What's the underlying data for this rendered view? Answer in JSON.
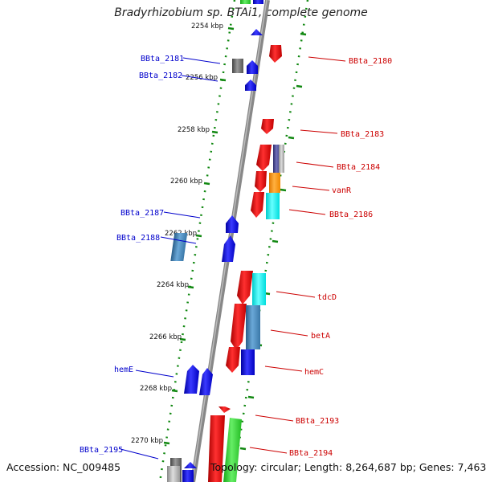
{
  "title": "Bradyrhizobium sp. BTAi1, complete genome",
  "accession": "Accession: NC_009485",
  "topology": "Topology: circular; Length: 8,264,687 bp; Genes: 7,463",
  "ticks": [
    "2254 kbp",
    "2256 kbp",
    "2258 kbp",
    "2260 kbp",
    "2262 kbp",
    "2264 kbp",
    "2266 kbp",
    "2268 kbp",
    "2270 kbp"
  ],
  "left_genes": [
    "BBta_2181",
    "BBta_2182",
    "BBta_2187",
    "BBta_2188",
    "hemE",
    "BBta_2195"
  ],
  "right_genes": [
    "BBta_2180",
    "BBta_2183",
    "BBta_2184",
    "vanR",
    "BBta_2186",
    "tdcD",
    "betA",
    "hemC",
    "BBta_2193",
    "BBta_2194"
  ],
  "colors": {
    "reverse_label": "#0000cc",
    "forward_label": "#cc0000",
    "backbone": "#888888",
    "dots": "#118811"
  }
}
